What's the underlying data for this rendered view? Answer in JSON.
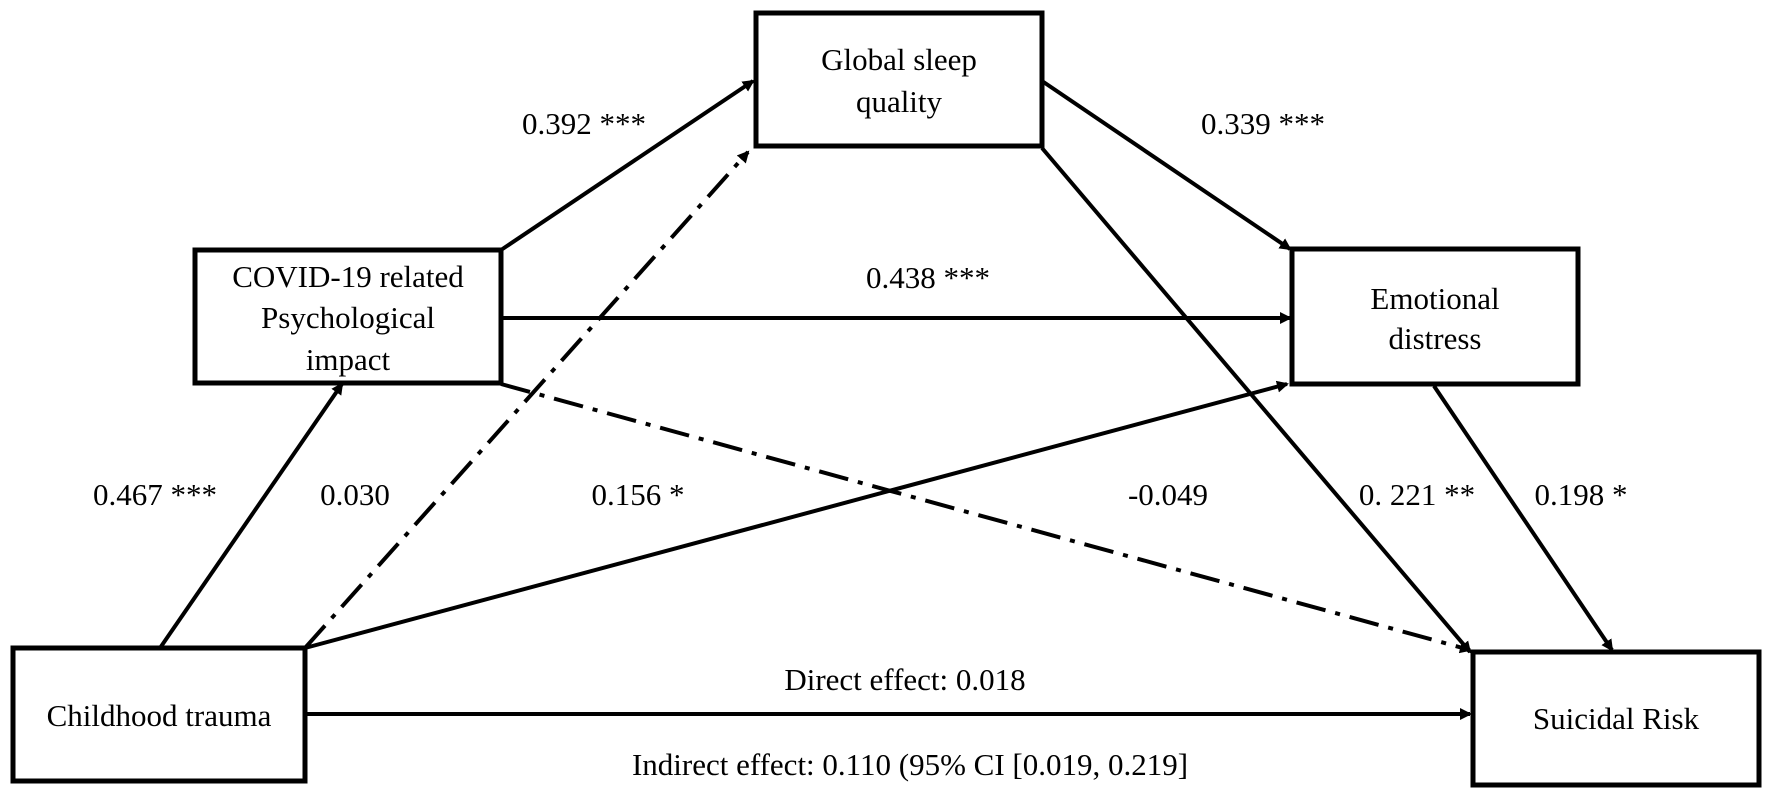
{
  "nodes": {
    "sleep": {
      "lines": [
        "Global sleep",
        "quality"
      ]
    },
    "covid": {
      "lines": [
        "COVID-19 related",
        "Psychological",
        "impact"
      ]
    },
    "emotion": {
      "lines": [
        "Emotional",
        "distress"
      ]
    },
    "trauma": {
      "lines": [
        "Childhood trauma"
      ]
    },
    "suicide": {
      "lines": [
        "Suicidal Risk"
      ]
    }
  },
  "paths": {
    "trauma_to_covid": "0.467 ***",
    "trauma_to_sleep": "0.030",
    "trauma_to_emotion": "0.156 *",
    "covid_to_sleep": "0.392 ***",
    "covid_to_emotion": "0.438 ***",
    "covid_to_suicide": "-0.049",
    "sleep_to_emotion": "0.339 ***",
    "sleep_to_suicide": "0. 221 **",
    "emotion_to_suicide": "0.198 *"
  },
  "effects": {
    "direct": "Direct effect: 0.018",
    "indirect": "Indirect effect: 0.110 (95% CI [0.019, 0.219]"
  },
  "colors": {
    "stroke": "#000000",
    "background": "#ffffff"
  }
}
